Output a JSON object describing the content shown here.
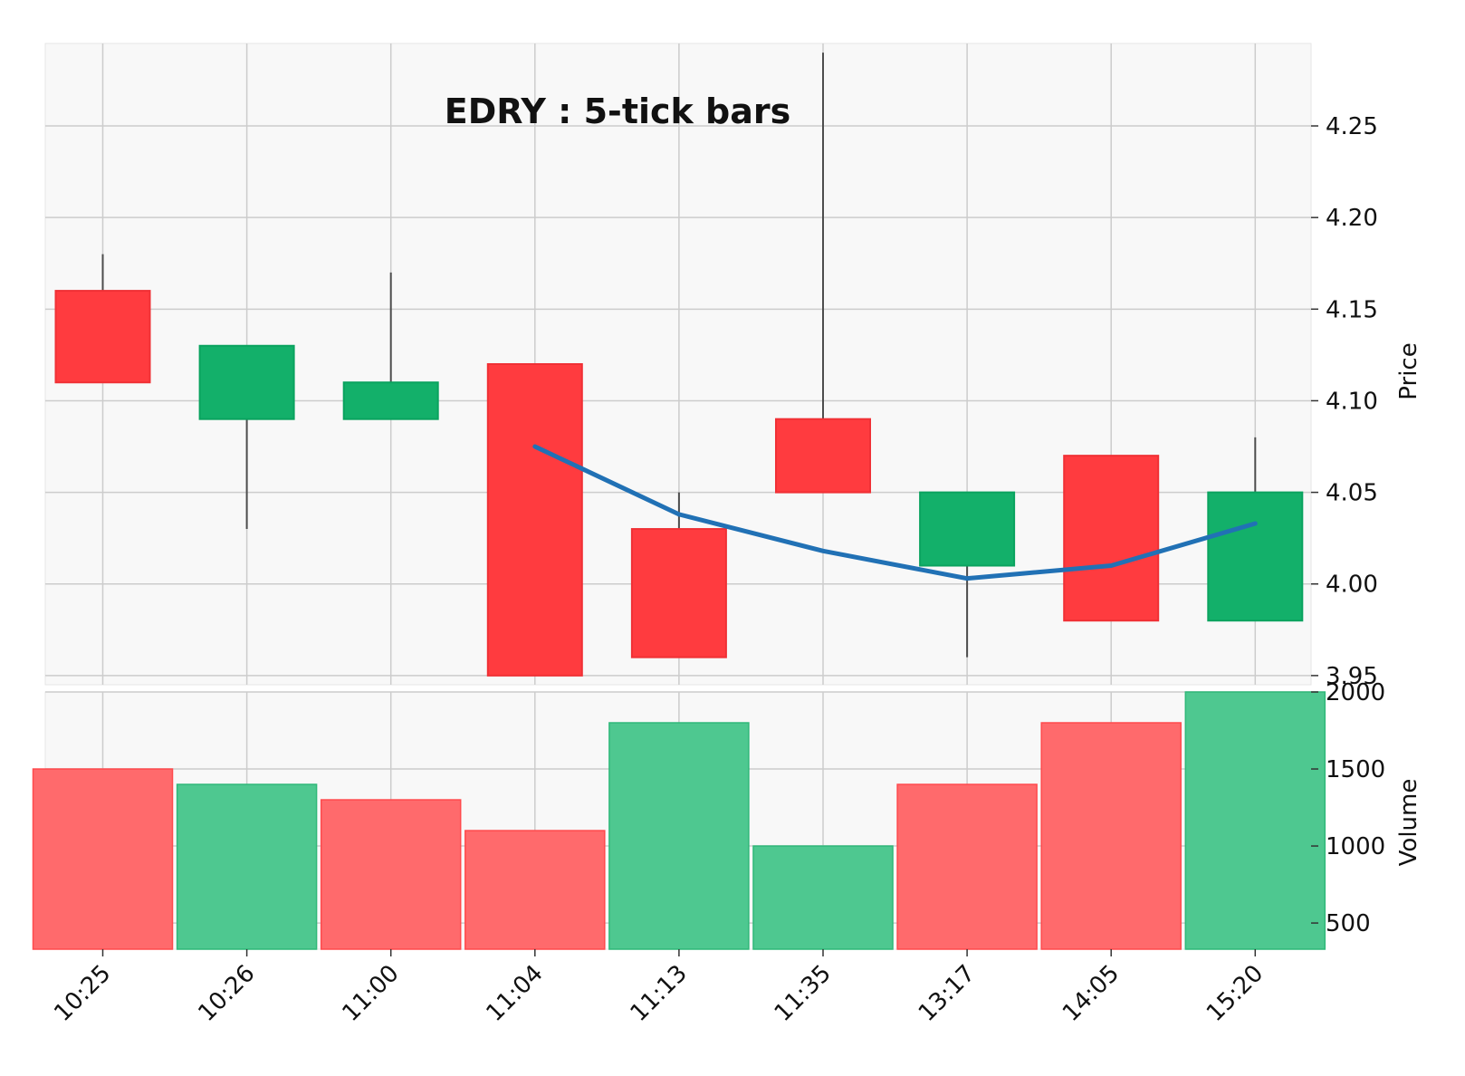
{
  "chart_data": {
    "type": "candlestick",
    "title": "EDRY : 5-tick bars",
    "x_labels": [
      "10:25",
      "10:26",
      "11:00",
      "11:04",
      "11:13",
      "11:35",
      "13:17",
      "14:05",
      "15:20"
    ],
    "ohlc": [
      {
        "open": 4.16,
        "high": 4.18,
        "low": 4.11,
        "close": 4.11
      },
      {
        "open": 4.09,
        "high": 4.13,
        "low": 4.03,
        "close": 4.13
      },
      {
        "open": 4.09,
        "high": 4.17,
        "low": 4.09,
        "close": 4.11
      },
      {
        "open": 4.12,
        "high": 4.12,
        "low": 3.95,
        "close": 3.95
      },
      {
        "open": 4.03,
        "high": 4.05,
        "low": 3.96,
        "close": 3.96
      },
      {
        "open": 4.09,
        "high": 4.29,
        "low": 4.05,
        "close": 4.05
      },
      {
        "open": 4.01,
        "high": 4.05,
        "low": 3.96,
        "close": 4.05
      },
      {
        "open": 4.07,
        "high": 4.07,
        "low": 3.98,
        "close": 3.98
      },
      {
        "open": 3.98,
        "high": 4.08,
        "low": 3.98,
        "close": 4.05
      }
    ],
    "moving_average": [
      null,
      null,
      null,
      4.075,
      4.038,
      4.018,
      4.003,
      4.01,
      4.033
    ],
    "volume": [
      1500,
      1400,
      1300,
      1100,
      1800,
      1000,
      1400,
      1800,
      2000
    ],
    "volume_up": [
      false,
      true,
      false,
      false,
      true,
      true,
      false,
      false,
      true
    ],
    "price_axis": {
      "label": "Price",
      "ylim": [
        3.945,
        4.295
      ],
      "ticks": [
        "3.95",
        "4.00",
        "4.05",
        "4.10",
        "4.15",
        "4.20",
        "4.25"
      ]
    },
    "volume_axis": {
      "label": "Volume",
      "ylim": [
        330,
        2000
      ],
      "ticks": [
        "500",
        "1000",
        "1500",
        "2000"
      ]
    },
    "grid": true,
    "colors": {
      "up": "#13b06a",
      "down": "#ff3b3f",
      "volume_up": "#4ec890",
      "volume_down": "#ff6a6c",
      "moving_average": "#2171b5",
      "wick": "#4d4d4d",
      "grid": "#cccccc",
      "panel_bg": "#f8f8f8"
    }
  }
}
